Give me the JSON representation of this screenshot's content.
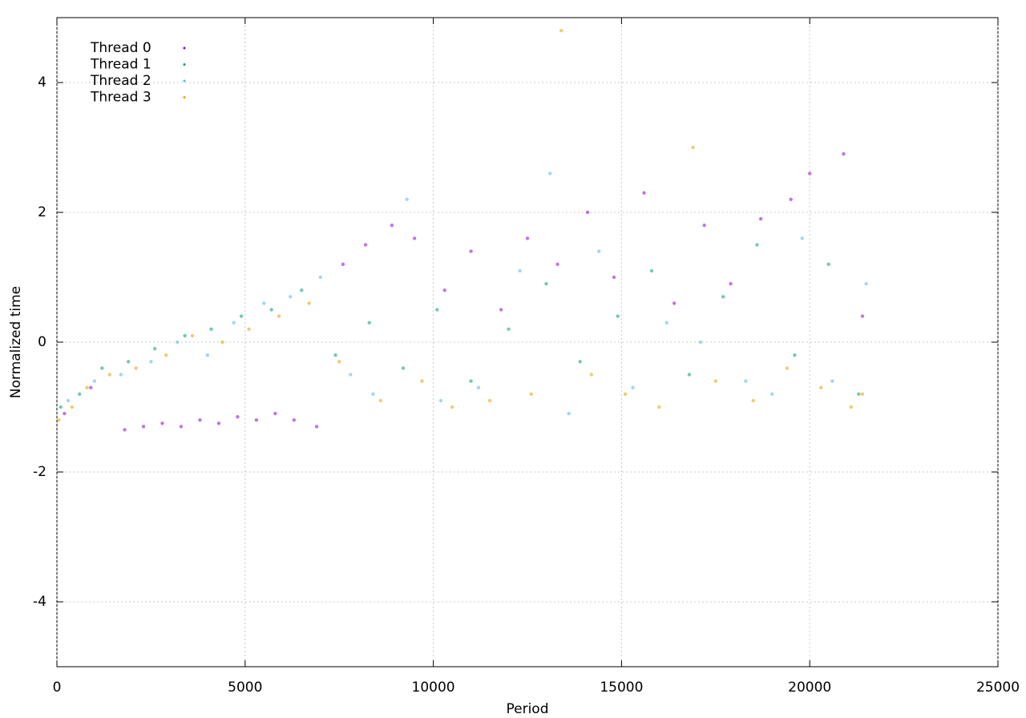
{
  "chart_data": {
    "type": "scatter",
    "x_label": "Period",
    "y_label": "Normalized time",
    "xlim": [
      0,
      25000
    ],
    "xticks": [
      0,
      5000,
      10000,
      15000,
      20000,
      25000
    ],
    "ylim": [
      -5,
      5
    ],
    "yticks": [
      -4,
      -2,
      0,
      2,
      4
    ],
    "grid": true,
    "legend": "top-left",
    "series": [
      {
        "name": "Thread 0",
        "color": "#9400d3",
        "x": [
          200,
          900,
          1800,
          2300,
          2800,
          3300,
          3800,
          4300,
          4800,
          5300,
          5800,
          6300,
          6900,
          7600,
          8200,
          8900,
          9500,
          10300,
          11000,
          11800,
          12500,
          13300,
          14100,
          14800,
          15600,
          16400,
          17200,
          17900,
          18700,
          19500,
          20000,
          20900,
          21400
        ],
        "values": [
          -1.1,
          -0.7,
          -1.35,
          -1.3,
          -1.25,
          -1.3,
          -1.2,
          -1.25,
          -1.15,
          -1.2,
          -1.1,
          -1.2,
          -1.3,
          1.2,
          1.5,
          1.8,
          1.6,
          0.8,
          1.4,
          0.5,
          1.6,
          1.2,
          2.0,
          1.0,
          2.3,
          0.6,
          1.8,
          0.9,
          1.9,
          2.2,
          2.6,
          2.9,
          0.4
        ]
      },
      {
        "name": "Thread 1",
        "color": "#009e73",
        "x": [
          100,
          600,
          1200,
          1900,
          2600,
          3400,
          4100,
          4900,
          5700,
          6500,
          7400,
          8300,
          9200,
          10100,
          11000,
          12000,
          13000,
          13900,
          14900,
          15800,
          16800,
          17700,
          18600,
          19600,
          20500,
          21300
        ],
        "values": [
          -1.0,
          -0.8,
          -0.4,
          -0.3,
          -0.1,
          0.1,
          0.2,
          0.4,
          0.5,
          0.8,
          -0.2,
          0.3,
          -0.4,
          0.5,
          -0.6,
          0.2,
          0.9,
          -0.3,
          0.4,
          1.1,
          -0.5,
          0.7,
          1.5,
          -0.2,
          1.2,
          -0.8
        ]
      },
      {
        "name": "Thread 2",
        "color": "#56b4e9",
        "x": [
          300,
          1000,
          1700,
          2500,
          3200,
          4000,
          4700,
          5500,
          6200,
          7000,
          7800,
          8400,
          9300,
          10200,
          11200,
          12300,
          13100,
          13600,
          14400,
          15300,
          16200,
          17100,
          18300,
          19000,
          19800,
          20600,
          21500
        ],
        "values": [
          -0.9,
          -0.6,
          -0.5,
          -0.3,
          0.0,
          -0.2,
          0.3,
          0.6,
          0.7,
          1.0,
          -0.5,
          -0.8,
          2.2,
          -0.9,
          -0.7,
          1.1,
          2.6,
          -1.1,
          1.4,
          -0.7,
          0.3,
          0.0,
          -0.6,
          -0.8,
          1.6,
          -0.6,
          0.9
        ]
      },
      {
        "name": "Thread 3",
        "color": "#e69f00",
        "x": [
          50,
          400,
          800,
          1400,
          2100,
          2900,
          3600,
          4400,
          5100,
          5900,
          6700,
          7500,
          8600,
          9700,
          10500,
          11500,
          12600,
          13400,
          14200,
          15100,
          16000,
          16900,
          17500,
          18500,
          19400,
          20300,
          21100,
          21400
        ],
        "values": [
          -1.2,
          -1.0,
          -0.7,
          -0.5,
          -0.4,
          -0.2,
          0.1,
          0.0,
          0.2,
          0.4,
          0.6,
          -0.3,
          -0.9,
          -0.6,
          -1.0,
          -0.9,
          -0.8,
          4.8,
          -0.5,
          -0.8,
          -1.0,
          3.0,
          -0.6,
          -0.9,
          -0.4,
          -0.7,
          -1.0,
          -0.8
        ]
      }
    ]
  }
}
